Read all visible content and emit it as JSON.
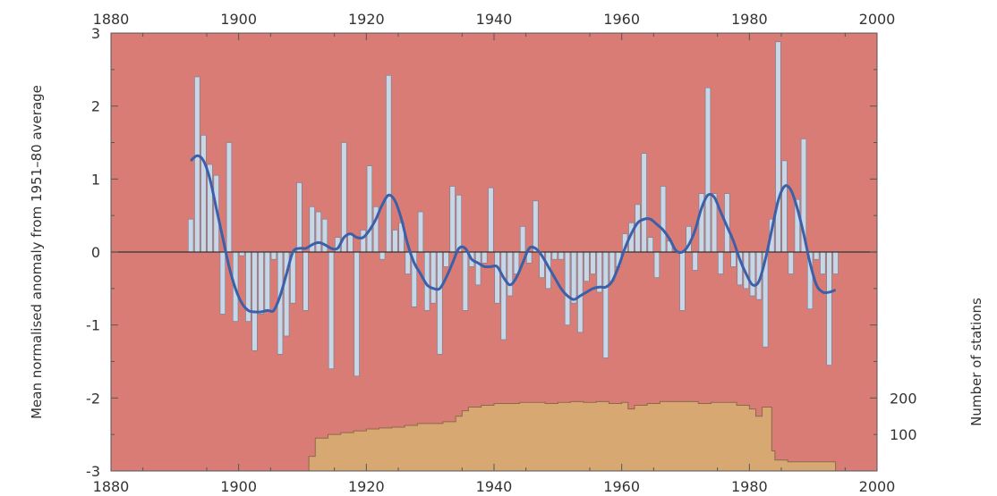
{
  "colors": {
    "plot_background": "#d97c76",
    "bars": "#c8d6e6",
    "bar_edge": "#6f7f92",
    "smooth_line": "#3b5fa8",
    "stations_fill": "#d7a872",
    "stations_edge": "#8a6a4a",
    "zero_line": "#333333"
  },
  "chart_data": {
    "type": "bar",
    "title": "",
    "ylabel": "Mean normalised anomaly from 1951–80 average",
    "ylabel_right": "Number of stations",
    "xlim": [
      1880,
      2000
    ],
    "ylim": [
      -3,
      3
    ],
    "x_ticks": [
      "1880",
      "1900",
      "1920",
      "1940",
      "1960",
      "1980",
      "2000"
    ],
    "x_tick_values": [
      1880,
      1900,
      1920,
      1940,
      1960,
      1980,
      2000
    ],
    "y_ticks": [
      "3",
      "2",
      "1",
      "0",
      "-1",
      "-2",
      "-3"
    ],
    "y_tick_values": [
      3,
      2,
      1,
      0,
      -1,
      -2,
      -3
    ],
    "right_ticks": [
      "200",
      "100"
    ],
    "right_tick_values": [
      200,
      100
    ],
    "stations_scale": {
      "value_at_minus3": 0,
      "value_at_minus2": 200
    },
    "annual_anomaly": {
      "years": [
        1892,
        1893,
        1894,
        1895,
        1896,
        1897,
        1898,
        1899,
        1900,
        1901,
        1902,
        1903,
        1904,
        1905,
        1906,
        1907,
        1908,
        1909,
        1910,
        1911,
        1912,
        1913,
        1914,
        1915,
        1916,
        1917,
        1918,
        1919,
        1920,
        1921,
        1922,
        1923,
        1924,
        1925,
        1926,
        1927,
        1928,
        1929,
        1930,
        1931,
        1932,
        1933,
        1934,
        1935,
        1936,
        1937,
        1938,
        1939,
        1940,
        1941,
        1942,
        1943,
        1944,
        1945,
        1946,
        1947,
        1948,
        1949,
        1950,
        1951,
        1952,
        1953,
        1954,
        1955,
        1956,
        1957,
        1958,
        1959,
        1960,
        1961,
        1962,
        1963,
        1964,
        1965,
        1966,
        1967,
        1968,
        1969,
        1970,
        1971,
        1972,
        1973,
        1974,
        1975,
        1976,
        1977,
        1978,
        1979,
        1980,
        1981,
        1982,
        1983,
        1984,
        1985,
        1986,
        1987,
        1988,
        1989,
        1990,
        1991,
        1992,
        1993
      ],
      "values": [
        0.45,
        2.4,
        1.6,
        1.2,
        1.05,
        -0.85,
        1.5,
        -0.95,
        -0.05,
        -0.95,
        -1.35,
        -0.85,
        -0.8,
        -0.1,
        -1.4,
        -1.15,
        -0.7,
        0.95,
        -0.8,
        0.62,
        0.55,
        0.45,
        -1.6,
        0.2,
        1.5,
        0.25,
        -1.7,
        0.3,
        1.18,
        0.62,
        -0.1,
        2.42,
        0.3,
        0.4,
        -0.3,
        -0.75,
        0.55,
        -0.8,
        -0.7,
        -1.4,
        -0.2,
        0.9,
        0.78,
        -0.8,
        -0.2,
        -0.45,
        -0.15,
        0.88,
        -0.7,
        -1.2,
        -0.6,
        -0.3,
        0.35,
        -0.15,
        0.7,
        -0.35,
        -0.5,
        -0.1,
        -0.1,
        -1.0,
        -0.7,
        -1.1,
        -0.4,
        -0.3,
        -0.55,
        -1.45,
        -0.4,
        -0.2,
        0.25,
        0.4,
        0.65,
        1.35,
        0.2,
        -0.35,
        0.9,
        0.15,
        0.0,
        -0.8,
        0.35,
        -0.25,
        0.8,
        2.25,
        0.8,
        -0.3,
        0.8,
        -0.2,
        -0.45,
        -0.5,
        -0.6,
        -0.65,
        -1.3,
        0.45,
        2.88,
        1.25,
        -0.3,
        0.72,
        1.55,
        -0.78,
        -0.1,
        -0.3,
        -1.55,
        -0.3
      ]
    },
    "smoothed_anomaly": {
      "x": [
        1892,
        1893,
        1894,
        1895,
        1896,
        1897,
        1898,
        1899,
        1900,
        1901,
        1902,
        1903,
        1904,
        1905,
        1906,
        1907,
        1908,
        1909,
        1910,
        1911,
        1912,
        1913,
        1914,
        1915,
        1916,
        1917,
        1918,
        1919,
        1920,
        1921,
        1922,
        1923,
        1924,
        1925,
        1926,
        1927,
        1928,
        1929,
        1930,
        1931,
        1932,
        1933,
        1934,
        1935,
        1936,
        1937,
        1938,
        1939,
        1940,
        1941,
        1942,
        1943,
        1944,
        1945,
        1946,
        1947,
        1948,
        1949,
        1950,
        1951,
        1952,
        1953,
        1954,
        1955,
        1956,
        1957,
        1958,
        1959,
        1960,
        1961,
        1962,
        1963,
        1964,
        1965,
        1966,
        1967,
        1968,
        1969,
        1970,
        1971,
        1972,
        1973,
        1974,
        1975,
        1976,
        1977,
        1978,
        1979,
        1980,
        1981,
        1982,
        1983,
        1984,
        1985,
        1986,
        1987,
        1988,
        1989,
        1990,
        1991,
        1992,
        1993
      ],
      "y": [
        1.25,
        1.32,
        1.25,
        1.0,
        0.6,
        0.2,
        -0.2,
        -0.5,
        -0.7,
        -0.8,
        -0.82,
        -0.82,
        -0.8,
        -0.8,
        -0.6,
        -0.3,
        0.0,
        0.05,
        0.05,
        0.1,
        0.13,
        0.1,
        0.05,
        0.05,
        0.2,
        0.25,
        0.2,
        0.2,
        0.3,
        0.45,
        0.65,
        0.78,
        0.7,
        0.45,
        0.1,
        -0.15,
        -0.3,
        -0.45,
        -0.5,
        -0.5,
        -0.35,
        -0.15,
        0.05,
        0.05,
        -0.1,
        -0.15,
        -0.2,
        -0.2,
        -0.2,
        -0.35,
        -0.45,
        -0.35,
        -0.15,
        0.05,
        0.05,
        -0.05,
        -0.2,
        -0.35,
        -0.5,
        -0.6,
        -0.65,
        -0.6,
        -0.55,
        -0.5,
        -0.48,
        -0.48,
        -0.4,
        -0.2,
        0.05,
        0.25,
        0.4,
        0.45,
        0.45,
        0.38,
        0.3,
        0.18,
        0.02,
        0.0,
        0.1,
        0.3,
        0.6,
        0.78,
        0.75,
        0.55,
        0.35,
        0.15,
        -0.1,
        -0.3,
        -0.45,
        -0.4,
        -0.1,
        0.3,
        0.7,
        0.9,
        0.85,
        0.6,
        0.25,
        -0.15,
        -0.45,
        -0.55,
        -0.55,
        -0.52
      ]
    },
    "stations": {
      "x": [
        1911,
        1912,
        1914,
        1916,
        1918,
        1920,
        1922,
        1924,
        1926,
        1928,
        1930,
        1932,
        1934,
        1935,
        1936,
        1938,
        1940,
        1942,
        1944,
        1946,
        1948,
        1950,
        1952,
        1954,
        1956,
        1957,
        1958,
        1960,
        1961,
        1962,
        1964,
        1966,
        1968,
        1970,
        1972,
        1974,
        1976,
        1978,
        1980,
        1981,
        1982,
        1983,
        1983.5,
        1984,
        1986,
        1988,
        1990,
        1993.5
      ],
      "y": [
        40,
        90,
        100,
        105,
        110,
        115,
        118,
        120,
        125,
        130,
        130,
        135,
        150,
        165,
        175,
        180,
        185,
        185,
        188,
        188,
        185,
        188,
        190,
        188,
        190,
        190,
        185,
        188,
        170,
        180,
        185,
        190,
        190,
        190,
        185,
        188,
        188,
        180,
        170,
        150,
        175,
        175,
        55,
        30,
        25,
        25,
        25,
        25
      ]
    }
  }
}
